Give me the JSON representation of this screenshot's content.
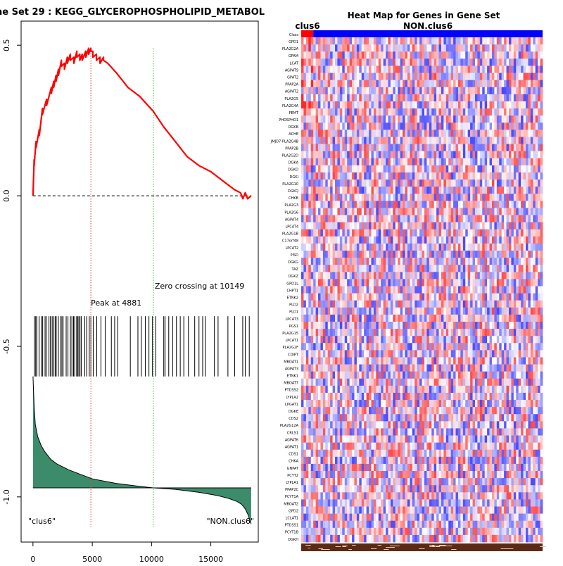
{
  "gsea_plot": {
    "title": "ne Set  29 : KEGG_GLYCEROPHOSPHOLIPID_METABOL",
    "peak_label": "Peak at 4881",
    "zero_label": "Zero crossing at 10149",
    "left_label": "\"clus6\"",
    "right_label": "\"NON.clus6\"",
    "colors": {
      "es_line": "#ff0000",
      "peak_line": "#dd4444",
      "zero_line": "#33bb33",
      "metric_fill": "#3c8c6c",
      "hits": "#000000"
    }
  },
  "heatmap": {
    "title": "Heat Map for Genes in Gene Set",
    "class_a": "clus6",
    "class_b": "NON.clus6",
    "class_row_label": "Class",
    "colors": {
      "class_a": "#ff0000",
      "class_b": "#0000ff"
    },
    "genes": [
      "GPD1",
      "PLA2G2A",
      "GPAM",
      "LCAT",
      "AGPAT9",
      "GPAT2",
      "PPAP2A",
      "AGPAT2",
      "PLA2G5",
      "PLA2G4A",
      "PEMT",
      "PHOSPHO1",
      "DGKB",
      "ACHE",
      "JMJD7-PLA2G4B",
      "PPAP2B",
      "PLA2G2D",
      "DGKA",
      "DGKD",
      "DGKI",
      "PLA2G10",
      "DGKQ",
      "CHKB",
      "PLA2G3",
      "PLA2G6",
      "AGPAT4",
      "LPCAT4",
      "PLA2G1B",
      "C17orf48",
      "LPCAT2",
      "PISD",
      "DGKG",
      "TAZ",
      "DGKZ",
      "GPD1L",
      "CHPT1",
      "ETNK2",
      "PLD2",
      "PLD1",
      "LPCAT3",
      "PGS1",
      "PLA2G15",
      "LPCAT1",
      "PLA2G2F",
      "CDIPT",
      "MBOAT1",
      "AGPAT3",
      "ETNK1",
      "MBOAT7",
      "PTDSS2",
      "LYPLA2",
      "LPGAT1",
      "DGKE",
      "CDS2",
      "PLA2G12A",
      "CRLS1",
      "AGPAT6",
      "AGPAT1",
      "CDS1",
      "CHKA",
      "GNPAT",
      "PCYT2",
      "LYPLA1",
      "PPAP2C",
      "PCYT1A",
      "MBOAT2",
      "GPD2",
      "LCLAT1",
      "PTDSS1",
      "PCYT1B",
      "DGKH"
    ]
  },
  "chart_data": [
    {
      "type": "line",
      "title": "ne Set  29 : KEGG_GLYCEROPHOSPHOLIPID_METABOL",
      "xlabel": "",
      "ylabel": "",
      "xlim": [
        -1000,
        19000
      ],
      "ylim": [
        -1.15,
        0.58
      ],
      "xticks": [
        0,
        5000,
        10000,
        15000
      ],
      "yticks": [
        -1.0,
        -0.5,
        0.0,
        0.5
      ],
      "series": [
        {
          "name": "Running Enrichment Score",
          "x": [
            0,
            100,
            100,
            260,
            260,
            540,
            540,
            800,
            800,
            1150,
            1150,
            1550,
            1550,
            1750,
            1750,
            1950,
            1950,
            2150,
            2150,
            2400,
            2400,
            2650,
            2650,
            2900,
            2900,
            3150,
            3150,
            3450,
            3450,
            3700,
            3700,
            3950,
            3950,
            4150,
            4150,
            4450,
            4450,
            4700,
            4700,
            4881,
            4881,
            5050,
            5050,
            5350,
            5350,
            5650,
            5650,
            5950,
            5950,
            6300,
            7000,
            8000,
            9000,
            10149,
            11000,
            12000,
            13000,
            14000,
            15000,
            16000,
            17000,
            17500,
            17700,
            17900,
            18100,
            18400
          ],
          "y": [
            0,
            0.12,
            0.1,
            0.18,
            0.16,
            0.22,
            0.2,
            0.29,
            0.27,
            0.32,
            0.3,
            0.36,
            0.34,
            0.38,
            0.36,
            0.4,
            0.38,
            0.42,
            0.4,
            0.45,
            0.43,
            0.44,
            0.42,
            0.46,
            0.44,
            0.47,
            0.45,
            0.46,
            0.44,
            0.48,
            0.46,
            0.47,
            0.45,
            0.47,
            0.45,
            0.48,
            0.46,
            0.49,
            0.47,
            0.49,
            0.48,
            0.48,
            0.46,
            0.47,
            0.45,
            0.46,
            0.44,
            0.46,
            0.45,
            0.44,
            0.41,
            0.36,
            0.33,
            0.28,
            0.23,
            0.18,
            0.13,
            0.1,
            0.08,
            0.05,
            0.02,
            0.01,
            -0.01,
            0.01,
            -0.01,
            0.0
          ]
        },
        {
          "name": "Ranked metric",
          "x": [
            0,
            100,
            200,
            400,
            700,
            1000,
            1500,
            2000,
            3000,
            4000,
            5000,
            7000,
            9000,
            10149,
            12000,
            14000,
            15500,
            16500,
            17200,
            17600,
            17900,
            18150,
            18300,
            18400
          ],
          "y": [
            -0.6,
            -0.7,
            -0.76,
            -0.8,
            -0.83,
            -0.85,
            -0.875,
            -0.89,
            -0.91,
            -0.925,
            -0.94,
            -0.955,
            -0.965,
            -0.97,
            -0.975,
            -0.985,
            -0.995,
            -1.005,
            -1.015,
            -1.025,
            -1.04,
            -1.06,
            -1.08,
            -1.09
          ]
        }
      ],
      "baseline_y": 0.0,
      "metric_baseline_y": -0.97,
      "hits_y_range": [
        -0.6,
        -0.4
      ],
      "hits": [
        120,
        230,
        320,
        520,
        720,
        820,
        1020,
        1120,
        1350,
        1470,
        1620,
        1730,
        1870,
        1960,
        2140,
        2340,
        2440,
        2540,
        2800,
        2950,
        3160,
        3280,
        3420,
        3520,
        3680,
        3780,
        3870,
        3970,
        4080,
        4370,
        4530,
        4750,
        4881,
        5080,
        5380,
        5730,
        6090,
        6610,
        6890,
        7150,
        8210,
        8850,
        9140,
        9480,
        9780,
        10080,
        10350,
        11030,
        11140,
        11450,
        11780,
        12100,
        12420,
        12720,
        13110,
        13640,
        14000,
        14310,
        14530,
        15300,
        15610,
        16440,
        17010,
        17690,
        17910,
        18240
      ],
      "peak_x": 4881,
      "zero_crossing_x": 10149,
      "annotations": [
        "Peak at 4881",
        "Zero crossing at 10149",
        "\"clus6\"",
        "\"NON.clus6\""
      ]
    },
    {
      "type": "heatmap",
      "title": "Heat Map for Genes in Gene Set",
      "rows": 72,
      "columns": 100,
      "class_a_columns": 5,
      "legend": [
        "clus6",
        "NON.clus6"
      ]
    }
  ]
}
